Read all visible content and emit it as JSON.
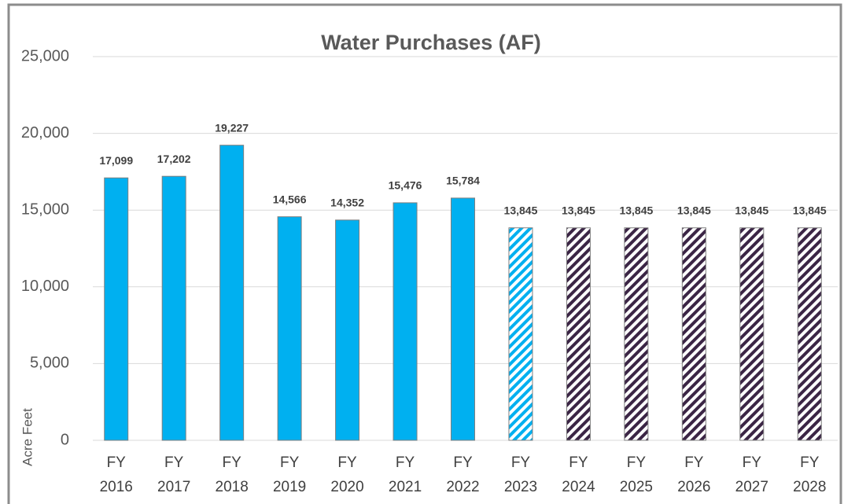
{
  "chart_data": {
    "type": "bar",
    "title": "Water Purchases (AF)",
    "y_label": "Acre Feet",
    "categories": [
      "FY 2016",
      "FY 2017",
      "FY 2018",
      "FY 2019",
      "FY 2020",
      "FY 2021",
      "FY 2022",
      "FY 2023",
      "FY 2024",
      "FY 2025",
      "FY 2026",
      "FY 2027",
      "FY 2028"
    ],
    "values": [
      17099,
      17202,
      19227,
      14566,
      14352,
      15476,
      15784,
      13845,
      13845,
      13845,
      13845,
      13845,
      13845
    ],
    "value_labels": [
      "17,099",
      "17,202",
      "19,227",
      "14,566",
      "14,352",
      "15,476",
      "15,784",
      "13,845",
      "13,845",
      "13,845",
      "13,845",
      "13,845",
      "13,845"
    ],
    "colors": [
      "#00b0f0",
      "#00b0f0",
      "#00b0f0",
      "#00b0f0",
      "#00b0f0",
      "#00b0f0",
      "#00b0f0",
      "#00b0f0",
      "#3b2545",
      "#3b2545",
      "#3b2545",
      "#3b2545",
      "#3b2545"
    ],
    "hatched": [
      false,
      false,
      false,
      false,
      false,
      false,
      false,
      true,
      true,
      true,
      true,
      true,
      true
    ],
    "ylim": [
      0,
      25000
    ],
    "yticks": [
      0,
      {
        "value": 5000,
        "label": "5,000"
      },
      {
        "value": 10000,
        "label": "10,000"
      },
      {
        "value": 15000,
        "label": "15,000"
      },
      {
        "value": 20000,
        "label": "20,000"
      },
      {
        "value": 25000,
        "label": "25,000"
      }
    ],
    "grid": true
  }
}
